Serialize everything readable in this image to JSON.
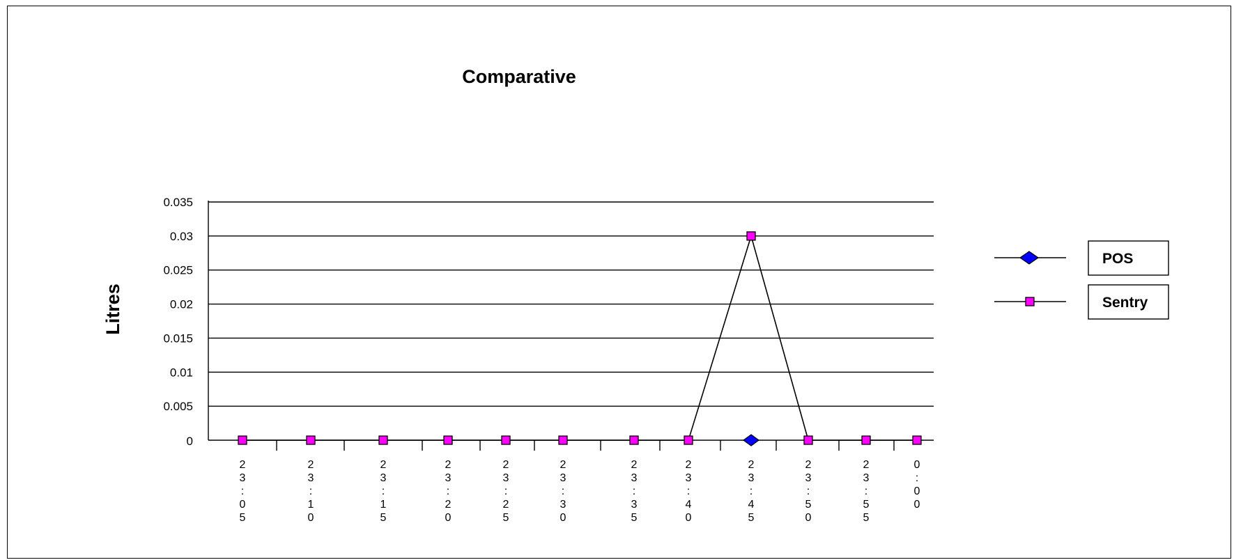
{
  "chart_data": {
    "type": "line",
    "title": "Comparative",
    "xlabel": "",
    "ylabel": "Litres",
    "categories": [
      "23:05",
      "23:10",
      "23:15",
      "23:20",
      "23:25",
      "23:30",
      "23:35",
      "23:40",
      "23:45",
      "23:50",
      "23:55",
      "0:00"
    ],
    "ylim": [
      0,
      0.035
    ],
    "yticks": [
      "0",
      "0.005",
      "0.01",
      "0.015",
      "0.02",
      "0.025",
      "0.03",
      "0.035"
    ],
    "grid": true,
    "legend_position": "right",
    "series": [
      {
        "name": "POS",
        "marker": "diamond",
        "color": "#0000ff",
        "points": [
          {
            "x": "23:45",
            "y": 0
          }
        ]
      },
      {
        "name": "Sentry",
        "marker": "square",
        "color": "#ff00ff",
        "values": [
          0,
          0,
          0,
          0,
          0,
          0,
          0,
          0,
          0.03,
          0,
          0,
          0
        ]
      }
    ]
  }
}
